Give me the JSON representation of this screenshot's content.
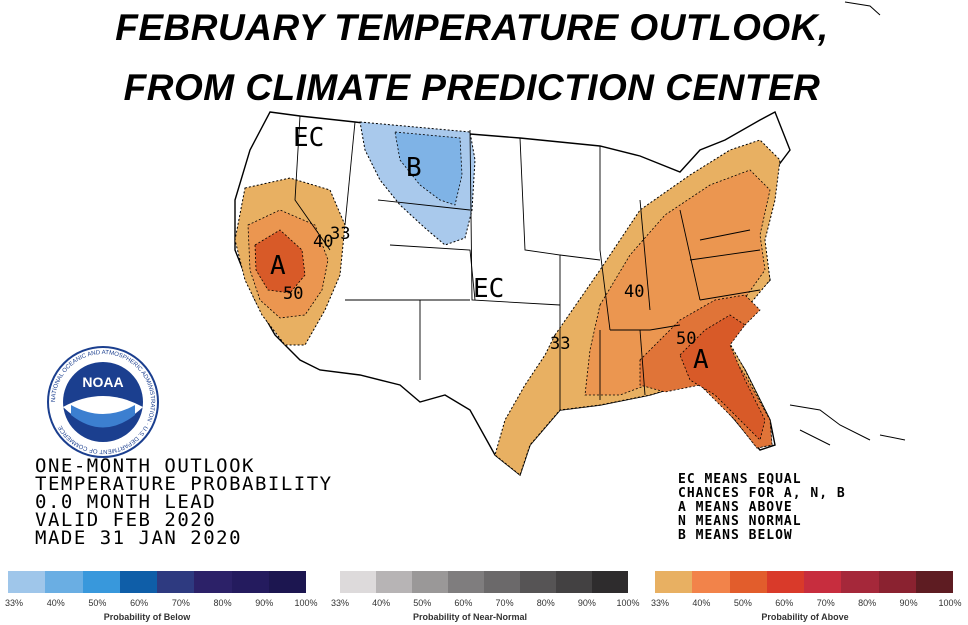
{
  "headline": {
    "line1": "FEBRUARY TEMPERATURE OUTLOOK,",
    "line2": "FROM CLIMATE PREDICTION CENTER"
  },
  "map_labels": {
    "ec_northwest": "EC",
    "ec_central": "EC",
    "below_label": "B",
    "above_west": "A",
    "above_southeast": "A",
    "contour_33_west": "33",
    "contour_40_west": "40",
    "contour_50_west": "50",
    "contour_33_east": "33",
    "contour_40_east": "40",
    "contour_50_east": "50"
  },
  "logo": {
    "name": "NOAA",
    "ring_text": "NATIONAL OCEANIC AND ATMOSPHERIC ADMINISTRATION · U.S. DEPARTMENT OF COMMERCE"
  },
  "outlook_info": {
    "line1": "ONE-MONTH OUTLOOK",
    "line2": "TEMPERATURE PROBABILITY",
    "line3": "0.0 MONTH LEAD",
    "line4": "VALID FEB 2020",
    "line5": "MADE 31 JAN 2020"
  },
  "ec_note": {
    "line1": "EC MEANS EQUAL",
    "line2": "CHANCES FOR A, N, B",
    "line3": "A MEANS ABOVE",
    "line4": "N MEANS NORMAL",
    "line5": "B MEANS BELOW"
  },
  "legend": {
    "below": {
      "title": "Probability of Below",
      "ticks": [
        "33%",
        "40%",
        "50%",
        "60%",
        "70%",
        "80%",
        "90%",
        "100%"
      ],
      "colors": [
        "#9fc6ea",
        "#6aaee3",
        "#3898dc",
        "#0f5ea8",
        "#2e3a80",
        "#2c2168",
        "#241b5e",
        "#1c1650"
      ]
    },
    "normal": {
      "title": "Probability of Near-Normal",
      "ticks": [
        "33%",
        "40%",
        "50%",
        "60%",
        "70%",
        "80%",
        "90%",
        "100%"
      ],
      "colors": [
        "#dddadb",
        "#b7b4b5",
        "#9a9898",
        "#7f7d7e",
        "#6b696a",
        "#565455",
        "#434142",
        "#2e2c2d"
      ]
    },
    "above": {
      "title": "Probability of Above",
      "ticks": [
        "33%",
        "40%",
        "50%",
        "60%",
        "70%",
        "80%",
        "90%",
        "100%"
      ],
      "colors": [
        "#e8b062",
        "#f2834a",
        "#e25d2c",
        "#d93a2a",
        "#c72d3e",
        "#a5283a",
        "#8a2230",
        "#5e1c22"
      ]
    }
  },
  "colors": {
    "below_light": "#a9c9ec",
    "below_mid": "#7fb3e6",
    "above_33": "#e8b062",
    "above_40": "#eb9650",
    "above_50": "#e07438",
    "above_60": "#d85a28"
  }
}
